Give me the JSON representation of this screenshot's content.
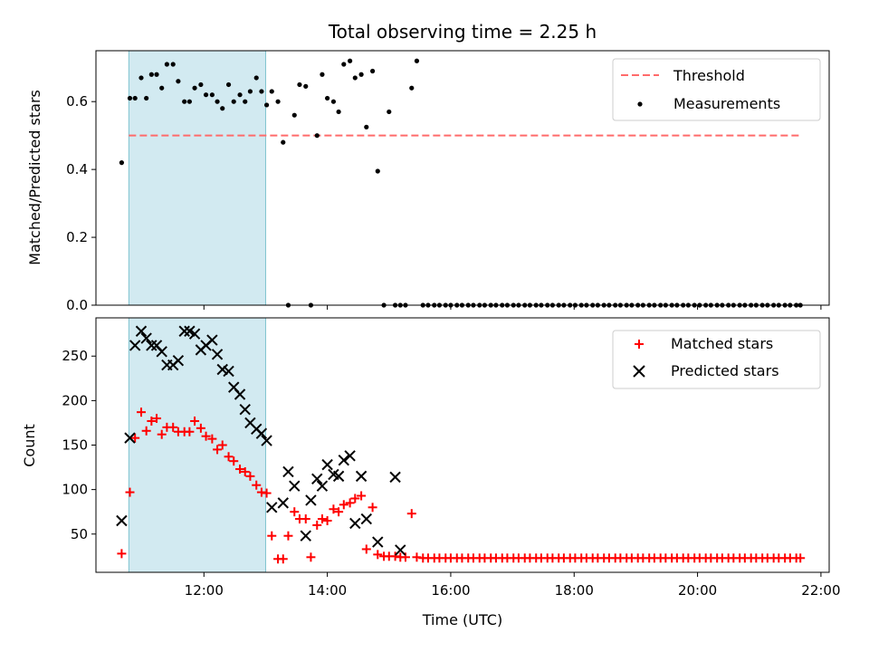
{
  "chart_data": [
    {
      "type": "scatter",
      "title": "Total observing time = 2.25 h",
      "xlabel": "",
      "ylabel": "Matched/Predicted stars",
      "xlim": [
        "10:15",
        "22:08"
      ],
      "ylim": [
        0,
        0.75
      ],
      "yticks": [
        "0.0",
        "0.2",
        "0.4",
        "0.6"
      ],
      "ytick_values": [
        0,
        0.2,
        0.4,
        0.6
      ],
      "shaded_span": {
        "from": "10:47",
        "to": "13:00",
        "color": "#add8e6"
      },
      "threshold": {
        "name": "Threshold",
        "y": 0.5,
        "from": "10:47",
        "to": "21:40",
        "color": "#ff6b6b",
        "style": "dashed"
      },
      "legend": {
        "position": "upper right",
        "entries": [
          "Threshold",
          "Measurements"
        ]
      },
      "series": [
        {
          "name": "Measurements",
          "marker": "dot",
          "color": "#000000",
          "x": [
            "10:40",
            "10:48",
            "10:53",
            "10:59",
            "11:04",
            "11:09",
            "11:14",
            "11:19",
            "11:24",
            "11:30",
            "11:35",
            "11:41",
            "11:46",
            "11:51",
            "11:57",
            "12:02",
            "12:08",
            "12:13",
            "12:18",
            "12:24",
            "12:29",
            "12:35",
            "12:40",
            "12:45",
            "12:51",
            "12:56",
            "13:01",
            "13:06",
            "13:12",
            "13:17",
            "13:22",
            "13:28",
            "13:33",
            "13:39",
            "13:44",
            "13:50",
            "13:55",
            "14:00",
            "14:06",
            "14:11",
            "14:16",
            "14:22",
            "14:27",
            "14:33",
            "14:38",
            "14:44",
            "14:49",
            "14:55",
            "15:00",
            "15:06",
            "15:11",
            "15:16",
            "15:22",
            "15:27",
            "15:33",
            "15:38",
            "15:44",
            "15:49",
            "15:55",
            "16:00",
            "16:06",
            "16:11",
            "16:17",
            "16:22",
            "16:28",
            "16:33",
            "16:39",
            "16:44",
            "16:50",
            "16:55",
            "17:01",
            "17:06",
            "17:12",
            "17:17",
            "17:23",
            "17:28",
            "17:34",
            "17:39",
            "17:45",
            "17:50",
            "17:56",
            "18:01",
            "18:07",
            "18:12",
            "18:18",
            "18:23",
            "18:29",
            "18:34",
            "18:40",
            "18:45",
            "18:51",
            "18:56",
            "19:02",
            "19:07",
            "19:13",
            "19:18",
            "19:24",
            "19:29",
            "19:35",
            "19:40",
            "19:46",
            "19:51",
            "19:57",
            "20:02",
            "20:08",
            "20:13",
            "20:19",
            "20:24",
            "20:30",
            "20:35",
            "20:41",
            "20:46",
            "20:52",
            "20:57",
            "21:03",
            "21:08",
            "21:14",
            "21:19",
            "21:25",
            "21:30",
            "21:36",
            "21:40"
          ],
          "y": [
            0.42,
            0.61,
            0.61,
            0.67,
            0.61,
            0.68,
            0.68,
            0.64,
            0.71,
            0.71,
            0.66,
            0.6,
            0.6,
            0.64,
            0.65,
            0.62,
            0.62,
            0.6,
            0.58,
            0.65,
            0.6,
            0.62,
            0.6,
            0.63,
            0.67,
            0.63,
            0.59,
            0.63,
            0.6,
            0.48,
            0.0,
            0.56,
            0.65,
            0.645,
            0.0,
            0.5,
            0.68,
            0.61,
            0.6,
            0.57,
            0.71,
            0.72,
            0.67,
            0.68,
            0.525,
            0.69,
            0.395,
            0.0,
            0.57,
            0.0,
            0.0,
            0.0,
            0.64,
            0.72,
            0.0,
            0.0,
            0.0,
            0.0,
            0.0,
            0.0,
            0.0,
            0.0,
            0.0,
            0.0,
            0.0,
            0.0,
            0.0,
            0.0,
            0.0,
            0.0,
            0.0,
            0.0,
            0.0,
            0.0,
            0.0,
            0.0,
            0.0,
            0.0,
            0.0,
            0.0,
            0.0,
            0.0,
            0.0,
            0.0,
            0.0,
            0.0,
            0.0,
            0.0,
            0.0,
            0.0,
            0.0,
            0.0,
            0.0,
            0.0,
            0.0,
            0.0,
            0.0,
            0.0,
            0.0,
            0.0,
            0.0,
            0.0,
            0.0,
            0.0,
            0.0,
            0.0,
            0.0,
            0.0,
            0.0,
            0.0,
            0.0,
            0.0,
            0.0,
            0.0,
            0.0,
            0.0,
            0.0,
            0.0,
            0.0,
            0.0,
            0.0,
            0.0
          ]
        }
      ]
    },
    {
      "type": "scatter",
      "title": "",
      "xlabel": "Time (UTC)",
      "ylabel": "Count",
      "xlim": [
        "10:15",
        "22:08"
      ],
      "ylim": [
        7,
        293
      ],
      "yticks": [
        "50",
        "100",
        "150",
        "200",
        "250"
      ],
      "ytick_values": [
        50,
        100,
        150,
        200,
        250
      ],
      "xticks": [
        "12:00",
        "14:00",
        "16:00",
        "18:00",
        "20:00",
        "22:00"
      ],
      "xtick_values": [
        "12:00",
        "14:00",
        "16:00",
        "18:00",
        "20:00",
        "22:00"
      ],
      "shaded_span": {
        "from": "10:47",
        "to": "13:00",
        "color": "#add8e6"
      },
      "legend": {
        "position": "upper right",
        "entries": [
          "Matched stars",
          "Predicted stars"
        ]
      },
      "series": [
        {
          "name": "Matched stars",
          "marker": "plus",
          "color": "#ff0000",
          "x": [
            "10:40",
            "10:48",
            "10:53",
            "10:59",
            "11:04",
            "11:09",
            "11:14",
            "11:19",
            "11:24",
            "11:30",
            "11:35",
            "11:41",
            "11:46",
            "11:51",
            "11:57",
            "12:02",
            "12:08",
            "12:13",
            "12:18",
            "12:24",
            "12:29",
            "12:35",
            "12:40",
            "12:45",
            "12:51",
            "12:56",
            "13:01",
            "13:06",
            "13:12",
            "13:17",
            "13:22",
            "13:28",
            "13:33",
            "13:39",
            "13:44",
            "13:50",
            "13:55",
            "14:00",
            "14:06",
            "14:11",
            "14:16",
            "14:22",
            "14:27",
            "14:33",
            "14:38",
            "14:44",
            "14:49",
            "14:55",
            "15:00",
            "15:06",
            "15:11",
            "15:16",
            "15:22",
            "15:27",
            "15:33",
            "15:38",
            "15:44",
            "15:49",
            "15:55",
            "16:00",
            "16:06",
            "16:11",
            "16:17",
            "16:22",
            "16:28",
            "16:33",
            "16:39",
            "16:44",
            "16:50",
            "16:55",
            "17:01",
            "17:06",
            "17:12",
            "17:17",
            "17:23",
            "17:28",
            "17:34",
            "17:39",
            "17:45",
            "17:50",
            "17:56",
            "18:01",
            "18:07",
            "18:12",
            "18:18",
            "18:23",
            "18:29",
            "18:34",
            "18:40",
            "18:45",
            "18:51",
            "18:56",
            "19:02",
            "19:07",
            "19:13",
            "19:18",
            "19:24",
            "19:29",
            "19:35",
            "19:40",
            "19:46",
            "19:51",
            "19:57",
            "20:02",
            "20:08",
            "20:13",
            "20:19",
            "20:24",
            "20:30",
            "20:35",
            "20:41",
            "20:46",
            "20:52",
            "20:57",
            "21:03",
            "21:08",
            "21:14",
            "21:19",
            "21:25",
            "21:30",
            "21:36",
            "21:40"
          ],
          "y": [
            28,
            97,
            158,
            187,
            166,
            177,
            180,
            162,
            170,
            170,
            165,
            165,
            165,
            177,
            169,
            160,
            157,
            145,
            150,
            137,
            132,
            123,
            120,
            115,
            105,
            97,
            96,
            48,
            22,
            22,
            48,
            75,
            67,
            67,
            24,
            60,
            67,
            65,
            78,
            75,
            83,
            85,
            90,
            93,
            33,
            80,
            27,
            25,
            25,
            25,
            24,
            24,
            73,
            24,
            23,
            23,
            23,
            23,
            23,
            23,
            23,
            23,
            23,
            23,
            23,
            23,
            23,
            23,
            23,
            23,
            23,
            23,
            23,
            23,
            23,
            23,
            23,
            23,
            23,
            23,
            23,
            23,
            23,
            23,
            23,
            23,
            23,
            23,
            23,
            23,
            23,
            23,
            23,
            23,
            23,
            23,
            23,
            23,
            23,
            23,
            23,
            23,
            23,
            23,
            23,
            23,
            23,
            23,
            23,
            23,
            23,
            23,
            23,
            23,
            23,
            23,
            23,
            23,
            23,
            23,
            23,
            23
          ]
        },
        {
          "name": "Predicted stars",
          "marker": "x",
          "color": "#000000",
          "x": [
            "10:40",
            "10:48",
            "10:53",
            "10:59",
            "11:04",
            "11:09",
            "11:14",
            "11:19",
            "11:24",
            "11:30",
            "11:35",
            "11:41",
            "11:46",
            "11:51",
            "11:57",
            "12:02",
            "12:08",
            "12:13",
            "12:18",
            "12:24",
            "12:29",
            "12:35",
            "12:40",
            "12:45",
            "12:51",
            "12:56",
            "13:01",
            "13:06",
            "13:17",
            "13:22",
            "13:28",
            "13:39",
            "13:44",
            "13:50",
            "13:55",
            "14:00",
            "14:06",
            "14:11",
            "14:16",
            "14:22",
            "14:27",
            "14:33",
            "14:38",
            "14:49",
            "15:06",
            "15:11"
          ],
          "y": [
            65,
            158,
            262,
            278,
            270,
            262,
            262,
            255,
            240,
            240,
            245,
            278,
            278,
            275,
            257,
            262,
            268,
            252,
            235,
            233,
            215,
            207,
            190,
            175,
            168,
            163,
            155,
            80,
            85,
            120,
            104,
            48,
            88,
            112,
            104,
            128,
            117,
            115,
            133,
            138,
            62,
            115,
            67,
            41,
            114,
            32
          ]
        }
      ]
    }
  ]
}
